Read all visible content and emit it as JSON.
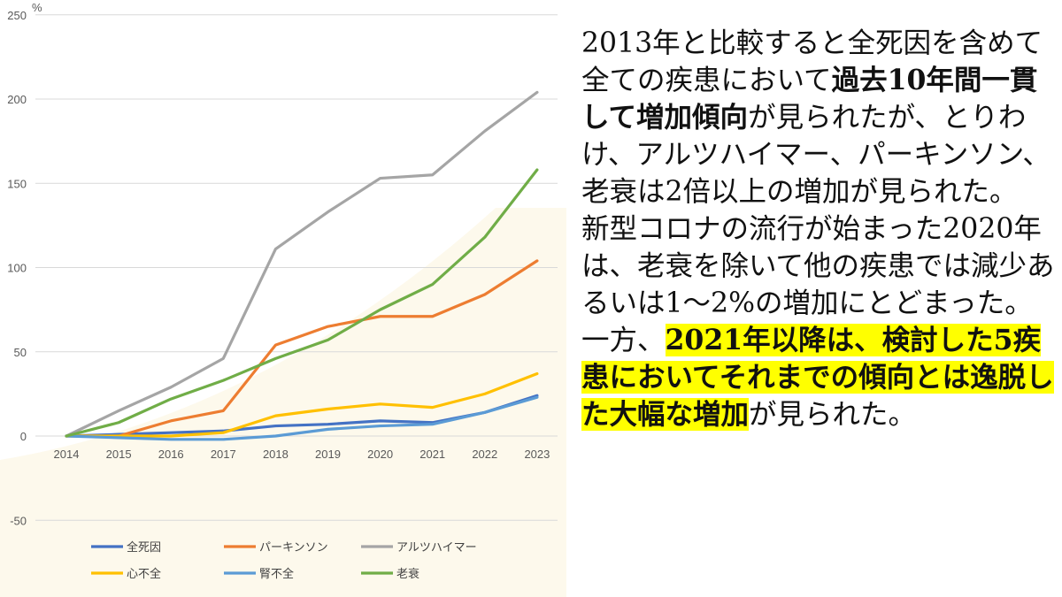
{
  "colors": {
    "background": "#ffffff",
    "cream_shape": "#fdf9ec",
    "gridline": "#d9d9d9",
    "axis_text": "#595959",
    "highlight": "#ffff00"
  },
  "chart_data": {
    "type": "line",
    "title": "",
    "xlabel": "",
    "ylabel": "",
    "y_unit": "%",
    "ylim": [
      -50,
      250
    ],
    "yticks": [
      -50,
      0,
      50,
      100,
      150,
      200,
      250
    ],
    "grid": true,
    "legend_position": "bottom",
    "categories": [
      "2014",
      "2015",
      "2016",
      "2017",
      "2018",
      "2019",
      "2020",
      "2021",
      "2022",
      "2023"
    ],
    "series": [
      {
        "name": "全死因",
        "color": "#4472c4",
        "values": [
          0,
          1,
          2,
          3,
          6,
          7,
          9,
          8,
          14,
          24
        ]
      },
      {
        "name": "パーキンソン",
        "color": "#ed7d31",
        "values": [
          0,
          0,
          9,
          15,
          54,
          65,
          71,
          71,
          84,
          104
        ]
      },
      {
        "name": "アルツハイマー",
        "color": "#a5a5a5",
        "values": [
          0,
          15,
          29,
          46,
          111,
          133,
          153,
          155,
          181,
          204
        ]
      },
      {
        "name": "心不全",
        "color": "#ffc000",
        "values": [
          0,
          0,
          0,
          2,
          12,
          16,
          19,
          17,
          25,
          37
        ]
      },
      {
        "name": "腎不全",
        "color": "#5b9bd5",
        "values": [
          0,
          -1,
          -2,
          -2,
          0,
          4,
          6,
          7,
          14,
          23
        ]
      },
      {
        "name": "老衰",
        "color": "#70ad47",
        "values": [
          0,
          8,
          22,
          33,
          46,
          57,
          75,
          90,
          118,
          158
        ]
      }
    ]
  },
  "commentary": {
    "p1": "2013年と比較すると全死因を含めて全ての疾患において",
    "p1_bold": "過去10年間一貫して増加傾向",
    "p1_tail": "が見られたが、とりわけ、アルツハイマー、パーキンソン、老衰は2倍以上の増加が見られた。",
    "p2": "新型コロナの流行が始まった2020年は、老衰を除いて他の疾患では減少あるいは1～2%の増加にとどまった。",
    "p3_head": "一方、",
    "p3_highlight": "2021年以降は、検討した5疾患においてそれまでの傾向とは逸脱した大幅な増加",
    "p3_tail": "が見られた。"
  }
}
